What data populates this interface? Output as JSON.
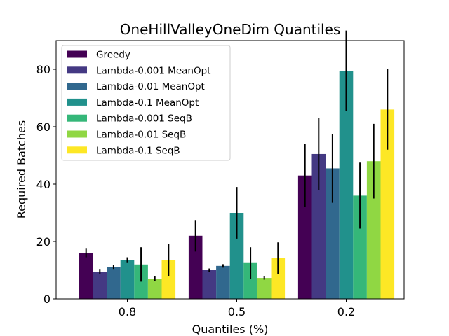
{
  "chart_data": {
    "type": "bar",
    "title": "OneHillValleyOneDim Quantiles",
    "xlabel": "Quantiles (%)",
    "ylabel": "Required Batches",
    "categories": [
      "0.8",
      "0.5",
      "0.2"
    ],
    "ylim": [
      0,
      90
    ],
    "yticks": [
      0,
      20,
      40,
      60,
      80
    ],
    "legend_position": "top-left",
    "series": [
      {
        "name": "Greedy",
        "color": "#440154",
        "values": [
          16,
          22,
          43
        ],
        "errors": [
          1.5,
          5.5,
          11
        ]
      },
      {
        "name": "Lambda-0.001 MeanOpt",
        "color": "#443983",
        "values": [
          9.5,
          10,
          50.5
        ],
        "errors": [
          0.7,
          0.6,
          12.5
        ]
      },
      {
        "name": "Lambda-0.01 MeanOpt",
        "color": "#31688e",
        "values": [
          11,
          11.5,
          45.5
        ],
        "errors": [
          0.8,
          0.6,
          12
        ]
      },
      {
        "name": "Lambda-0.1 MeanOpt",
        "color": "#21918c",
        "values": [
          13.5,
          30,
          79.5
        ],
        "errors": [
          1,
          9,
          14
        ]
      },
      {
        "name": "Lambda-0.001 SeqB",
        "color": "#35b779",
        "values": [
          12,
          12.5,
          36
        ],
        "errors": [
          6,
          5.5,
          11.5
        ]
      },
      {
        "name": "Lambda-0.01 SeqB",
        "color": "#90d743",
        "values": [
          7,
          7.3,
          48
        ],
        "errors": [
          0.8,
          0.6,
          13
        ]
      },
      {
        "name": "Lambda-0.1 SeqB",
        "color": "#fde725",
        "values": [
          13.5,
          14.2,
          66
        ],
        "errors": [
          5.7,
          5.5,
          14
        ]
      }
    ]
  }
}
